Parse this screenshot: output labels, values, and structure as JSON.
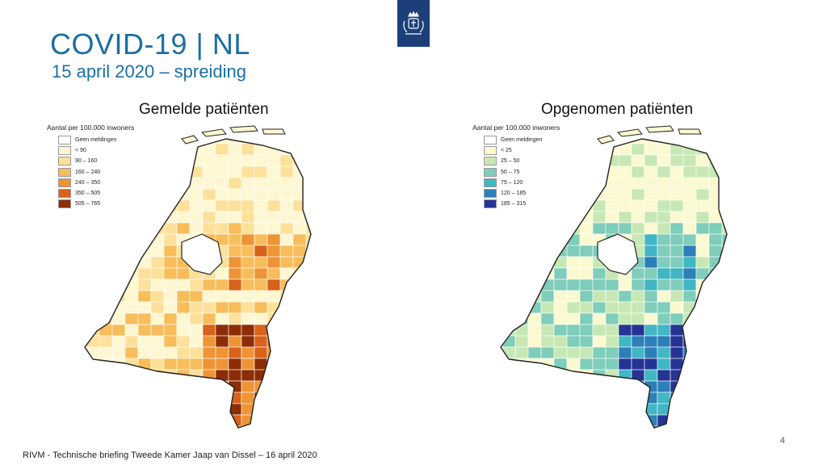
{
  "slide": {
    "title": "COVID-19 | NL",
    "subtitle": "15 april 2020 – spreiding",
    "footer": "RIVM - Technische briefing Tweede Kamer Jaap van Dissel – 16 april 2020",
    "page_number": "4"
  },
  "maps": [
    {
      "title": "Gemelde patiënten",
      "legend_title": "Aantal per 100.000 inwoners",
      "legend": [
        {
          "label": "Geen meldingen",
          "color": "#ffffff"
        },
        {
          "label": "< 90",
          "color": "#fff7d2"
        },
        {
          "label": "90 – 160",
          "color": "#fde09a"
        },
        {
          "label": "160 – 240",
          "color": "#f8bd5b"
        },
        {
          "label": "240 – 350",
          "color": "#ee9435"
        },
        {
          "label": "350 – 505",
          "color": "#d8621b"
        },
        {
          "label": "505 – 765",
          "color": "#8c2d06"
        }
      ]
    },
    {
      "title": "Opgenomen patiënten",
      "legend_title": "Aantal per 100.000 inwoners",
      "legend": [
        {
          "label": "Geen meldingen",
          "color": "#ffffff"
        },
        {
          "label": "< 25",
          "color": "#fbf9d0"
        },
        {
          "label": "25 – 50",
          "color": "#c7e8b4"
        },
        {
          "label": "50 – 75",
          "color": "#7fcdbb"
        },
        {
          "label": "75 – 120",
          "color": "#41b6c4"
        },
        {
          "label": "120 – 185",
          "color": "#2c7fb8"
        },
        {
          "label": "185 – 315",
          "color": "#253494"
        }
      ]
    }
  ]
}
